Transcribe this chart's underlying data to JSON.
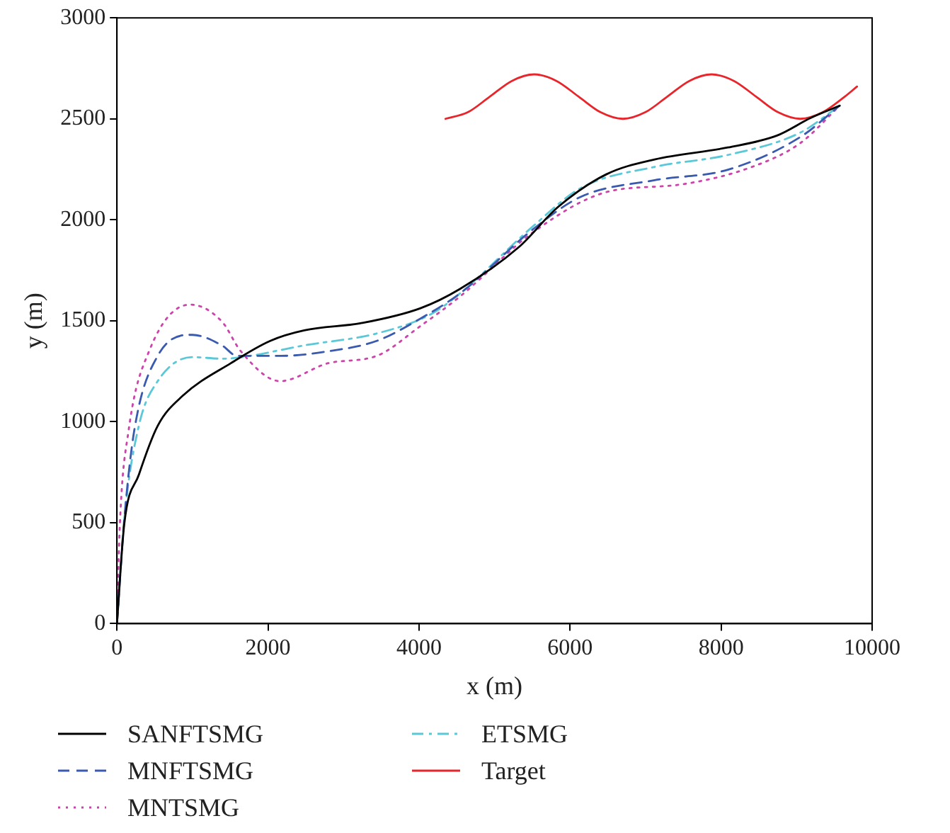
{
  "chart_data": {
    "type": "line",
    "xlabel": "x (m)",
    "ylabel": "y (m)",
    "xlim": [
      0,
      10000
    ],
    "ylim": [
      0,
      3000
    ],
    "xticks": [
      0,
      2000,
      4000,
      6000,
      8000,
      10000
    ],
    "yticks": [
      0,
      500,
      1000,
      1500,
      2000,
      2500,
      3000
    ],
    "grid": false,
    "legend": "bottom",
    "marker": "none",
    "series": [
      {
        "name": "SANFTSMG",
        "color": "#000000",
        "line_style": "solid",
        "x": [
          0,
          97,
          290,
          540,
          870,
          1510,
          2030,
          2480,
          3250,
          4020,
          4545,
          5320,
          5840,
          6480,
          7120,
          8090,
          8740,
          9190,
          9570
        ],
        "values": [
          0,
          494,
          737,
          980,
          1128,
          1290,
          1400,
          1452,
          1489,
          1562,
          1658,
          1864,
          2063,
          2225,
          2299,
          2358,
          2417,
          2505,
          2565
        ]
      },
      {
        "name": "MNFTSMG",
        "color": "#3a5ab0",
        "line_style": "dashed",
        "x": [
          0,
          97,
          230,
          540,
          1000,
          1390,
          1590,
          2170,
          2800,
          3440,
          4020,
          4545,
          5510,
          6150,
          7120,
          8090,
          9050,
          9570
        ],
        "values": [
          0,
          516,
          958,
          1326,
          1430,
          1378,
          1326,
          1326,
          1349,
          1400,
          1511,
          1636,
          1953,
          2115,
          2196,
          2248,
          2410,
          2565
        ]
      },
      {
        "name": "MNTSMG",
        "color": "#cc44aa",
        "line_style": "dotted",
        "x": [
          0,
          39,
          155,
          425,
          970,
          1390,
          1640,
          2160,
          2800,
          3440,
          4020,
          4545,
          5510,
          6480,
          7450,
          8410,
          9050,
          9570
        ],
        "values": [
          0,
          494,
          958,
          1349,
          1580,
          1496,
          1349,
          1201,
          1290,
          1326,
          1474,
          1621,
          1938,
          2137,
          2174,
          2262,
          2380,
          2565
        ]
      },
      {
        "name": "ETSMG",
        "color": "#5bc8d8",
        "line_style": "dashdot",
        "x": [
          0,
          97,
          290,
          540,
          1000,
          1390,
          1640,
          2480,
          3440,
          4160,
          4545,
          5510,
          6150,
          7120,
          8090,
          9050,
          9570
        ],
        "values": [
          0,
          516,
          980,
          1201,
          1320,
          1312,
          1319,
          1378,
          1437,
          1533,
          1636,
          1968,
          2159,
          2262,
          2321,
          2432,
          2565
        ]
      },
      {
        "name": "Target",
        "color": "#e8252a",
        "line_style": "solid",
        "x": [
          4350,
          4644,
          4938,
          5231,
          5525,
          5819,
          6113,
          6406,
          6700,
          6994,
          7288,
          7581,
          7875,
          8169,
          8463,
          8756,
          9050,
          9344,
          9638,
          9800
        ],
        "values": [
          2500,
          2532,
          2610,
          2688,
          2720,
          2688,
          2610,
          2532,
          2500,
          2532,
          2610,
          2688,
          2720,
          2688,
          2610,
          2532,
          2500,
          2532,
          2610,
          2660
        ]
      }
    ]
  }
}
